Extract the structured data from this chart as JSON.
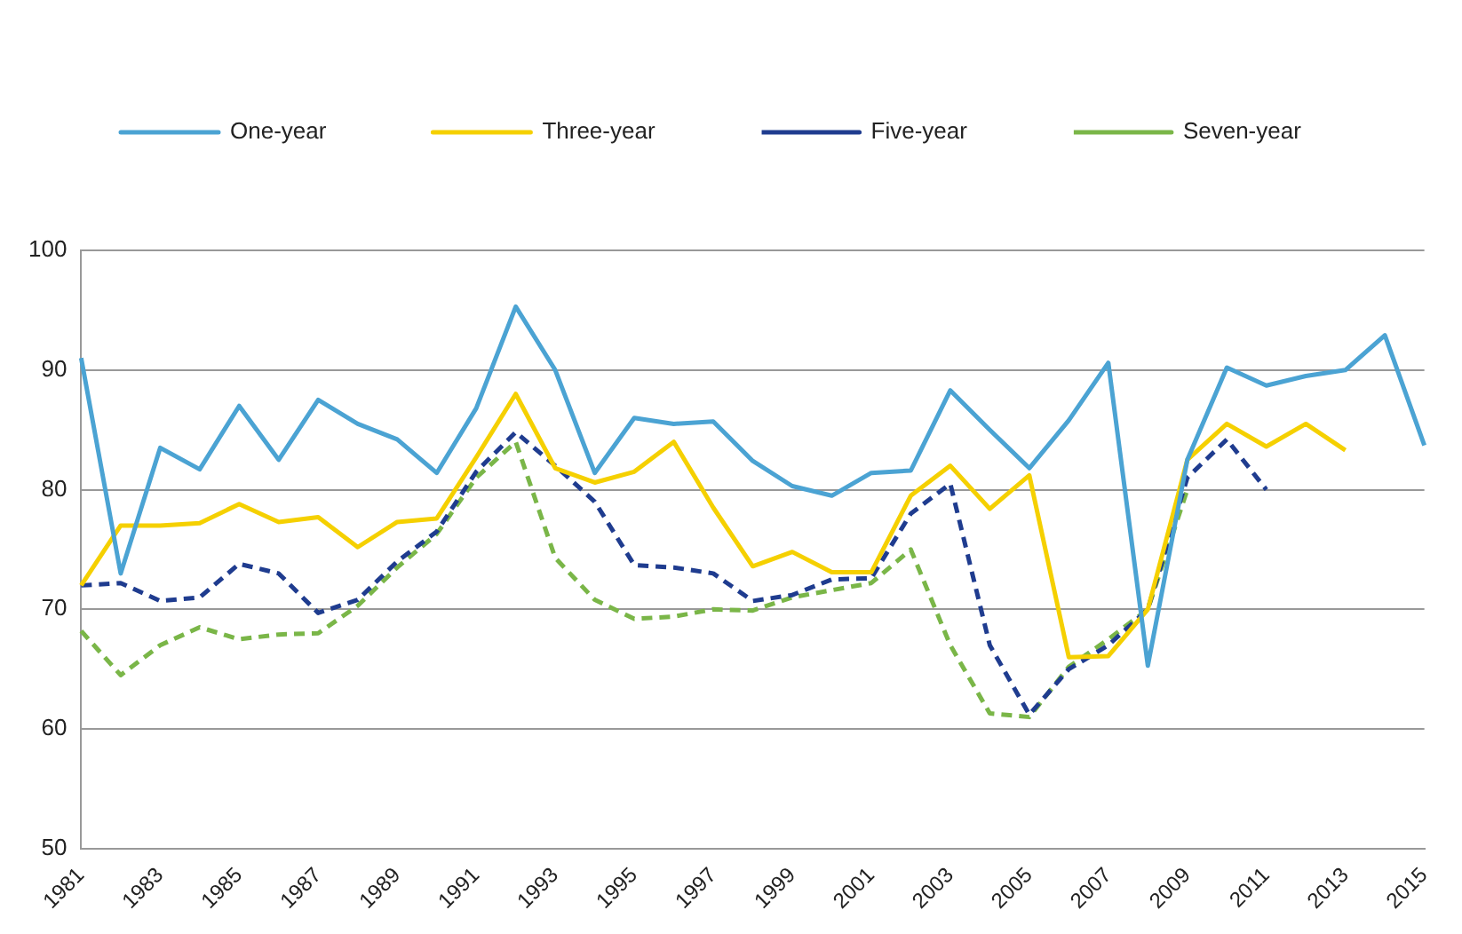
{
  "chart_data": {
    "type": "line",
    "categories": [
      "1981",
      null,
      "1983",
      null,
      "1985",
      null,
      "1987",
      null,
      "1989",
      null,
      "1991",
      null,
      "1993",
      null,
      "1995",
      null,
      "1997",
      null,
      "1999",
      null,
      "2001",
      null,
      "2003",
      null,
      "2005",
      null,
      "2007",
      null,
      "2009",
      null,
      "2011",
      null,
      "2013",
      null,
      "2015"
    ],
    "series": [
      {
        "name": "One-year",
        "color": "#4ba3d3",
        "line_style": "solid",
        "values": [
          91,
          73,
          83.5,
          81.7,
          87,
          82.5,
          87.5,
          85.5,
          84.2,
          81.4,
          86.8,
          95.3,
          90,
          81.4,
          86,
          85.5,
          85.7,
          82.4,
          80.3,
          79.5,
          81.4,
          81.6,
          88.3,
          85,
          81.8,
          85.8,
          90.6,
          65.3,
          82.5,
          90.2,
          88.7,
          89.5,
          90,
          92.9,
          83.7
        ]
      },
      {
        "name": "Three-year",
        "color": "#f5d000",
        "line_style": "solid",
        "values": [
          72,
          77,
          77,
          77.2,
          78.8,
          77.3,
          77.7,
          75.2,
          77.3,
          77.6,
          82.7,
          88,
          81.8,
          80.6,
          81.5,
          84,
          78.5,
          73.6,
          74.8,
          73.1,
          73.1,
          79.5,
          82,
          78.4,
          81.2,
          66,
          66.1,
          70,
          82.5,
          85.5,
          83.6,
          85.5,
          83.3,
          null,
          null
        ]
      },
      {
        "name": "Five-year",
        "color": "#1f3c8f",
        "line_style": "dashed",
        "values": [
          72,
          72.2,
          70.7,
          71,
          73.8,
          73,
          69.7,
          70.8,
          74,
          76.5,
          81.5,
          84.8,
          82,
          79,
          73.7,
          73.5,
          73,
          70.7,
          71.2,
          72.5,
          72.6,
          78,
          80.5,
          67,
          61.2,
          65,
          67,
          70,
          81,
          84.2,
          80,
          null,
          null,
          null,
          null
        ]
      },
      {
        "name": "Seven-year",
        "color": "#7ab648",
        "line_style": "dashed",
        "values": [
          68.2,
          64.5,
          67,
          68.5,
          67.5,
          67.9,
          68,
          70.3,
          73.5,
          76.3,
          81,
          84,
          74.3,
          70.8,
          69.2,
          69.4,
          70,
          69.9,
          71,
          71.6,
          72.2,
          75,
          67,
          61.3,
          61,
          65.2,
          67.5,
          70,
          80,
          null,
          null,
          null,
          null,
          null,
          null
        ]
      }
    ],
    "ylim": [
      50,
      100
    ],
    "yticks": [
      50,
      60,
      70,
      80,
      90,
      100
    ],
    "grid": "y",
    "legend": "top",
    "marker": "none"
  }
}
